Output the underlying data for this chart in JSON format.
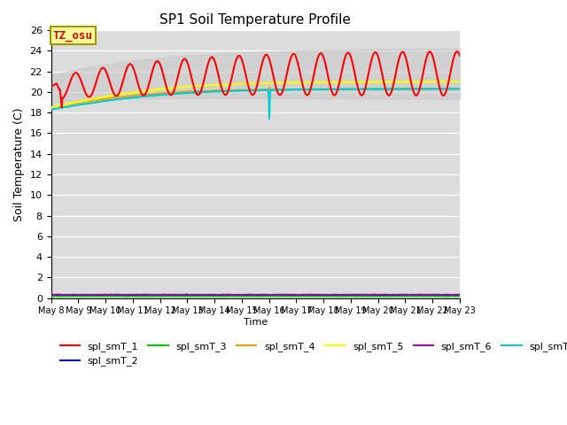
{
  "title": "SP1 Soil Temperature Profile",
  "xlabel": "Time",
  "ylabel": "Soil Temperature (C)",
  "ylim": [
    0,
    26
  ],
  "yticks": [
    0,
    2,
    4,
    6,
    8,
    10,
    12,
    14,
    16,
    18,
    20,
    22,
    24,
    26
  ],
  "annotation_text": "TZ_osu",
  "annotation_color": "#cc0000",
  "annotation_bg": "#ffff99",
  "annotation_border": "#999900",
  "plot_bg": "#dcdcdc",
  "line_colors": {
    "spl_smT_1": "#ff0000",
    "spl_smT_2": "#0000cc",
    "spl_smT_3": "#00cc00",
    "spl_smT_4": "#ff9900",
    "spl_smT_5": "#ffff00",
    "spl_smT_6": "#aa00aa",
    "spl_smT_7": "#00cccc"
  },
  "band_color": "#c8c8c8",
  "band_alpha": 0.6
}
